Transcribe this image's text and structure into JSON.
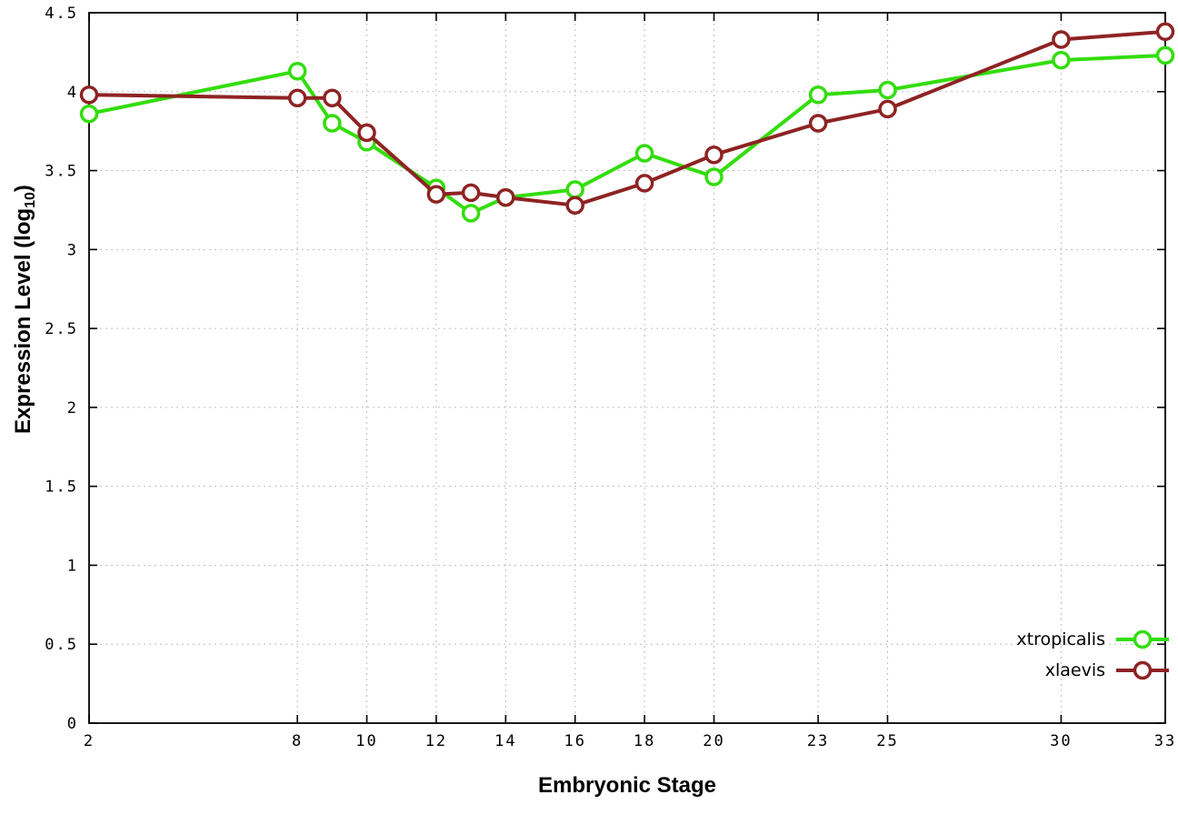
{
  "chart_data": {
    "type": "line",
    "title": "",
    "xlabel": "Embryonic Stage",
    "ylabel": "Expression Level (log10)",
    "ylabel_parts": {
      "main": "Expression Level (log",
      "sub": "10",
      "suffix": ")"
    },
    "xlim": [
      2,
      33
    ],
    "ylim": [
      0,
      4.5
    ],
    "y_tick_step": 0.5,
    "x_ticks": [
      2,
      8,
      10,
      12,
      14,
      16,
      18,
      20,
      23,
      25,
      30,
      33
    ],
    "grid": true,
    "legend_position": "bottom-right",
    "background_color": "#ffffff",
    "series": [
      {
        "name": "xtropicalis",
        "color": "#33dd0c",
        "x": [
          2,
          8,
          9,
          10,
          12,
          13,
          14,
          16,
          18,
          20,
          23,
          25,
          30,
          33
        ],
        "values": [
          3.86,
          4.13,
          3.8,
          3.68,
          3.39,
          3.23,
          3.33,
          3.38,
          3.61,
          3.46,
          3.98,
          4.01,
          4.2,
          4.23
        ]
      },
      {
        "name": "xlaevis",
        "color": "#8e2323",
        "x": [
          2,
          8,
          9,
          10,
          12,
          13,
          14,
          16,
          18,
          20,
          23,
          25,
          30,
          33
        ],
        "values": [
          3.98,
          3.96,
          3.96,
          3.74,
          3.35,
          3.36,
          3.33,
          3.28,
          3.42,
          3.6,
          3.8,
          3.89,
          4.33,
          4.38
        ]
      }
    ]
  }
}
